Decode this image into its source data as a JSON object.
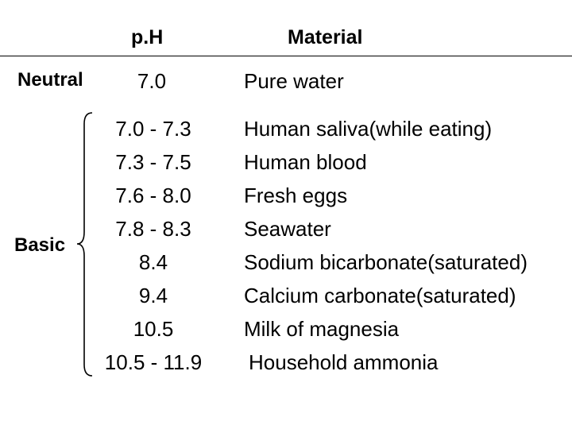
{
  "header": {
    "ph": "p.H",
    "material": "Material"
  },
  "neutral": {
    "label": "Neutral",
    "ph": "7.0",
    "material": "Pure water"
  },
  "basic": {
    "label": "Basic",
    "rows": [
      {
        "ph": "7.0 - 7.3",
        "material": "Human saliva(while eating)"
      },
      {
        "ph": "7.3 - 7.5",
        "material": "Human blood"
      },
      {
        "ph": "7.6 - 8.0",
        "material": "Fresh eggs"
      },
      {
        "ph": "7.8 - 8.3",
        "material": "Seawater"
      },
      {
        "ph": "8.4",
        "material": "Sodium bicarbonate(saturated)"
      },
      {
        "ph": "9.4",
        "material": "Calcium carbonate(saturated)"
      },
      {
        "ph": "10.5",
        "material": "Milk of magnesia"
      },
      {
        "ph": "10.5 - 11.9",
        "material": "Household ammonia"
      }
    ]
  }
}
